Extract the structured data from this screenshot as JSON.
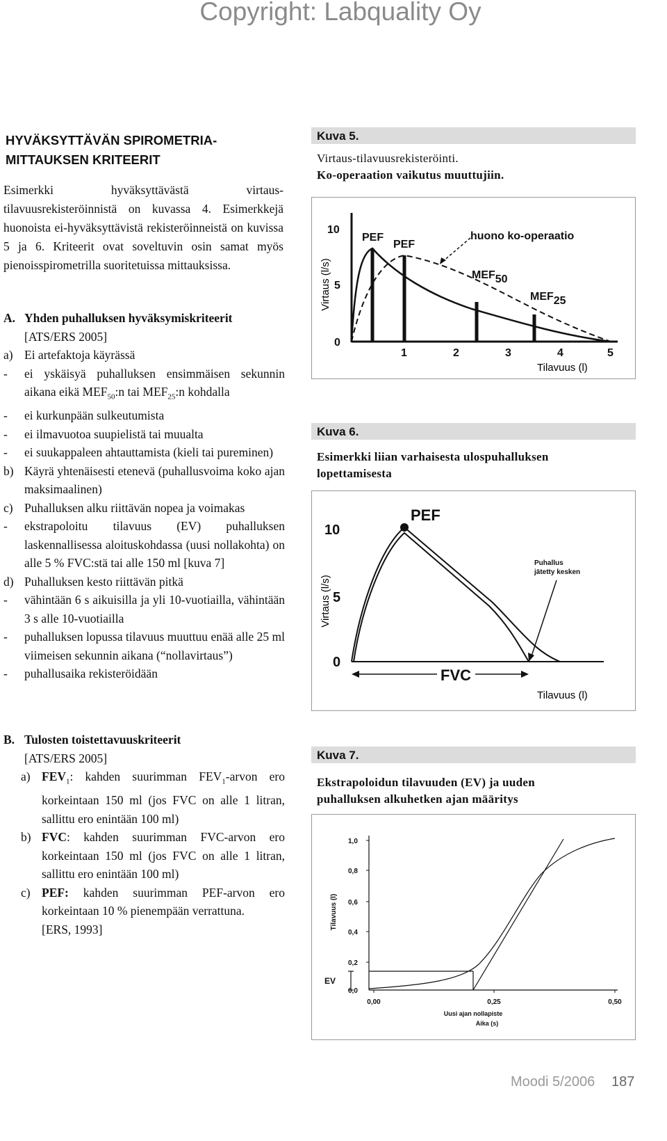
{
  "copyright": "Copyright: Labquality Oy",
  "heading": [
    "HYVÄKSYTTÄVÄN SPIROMETRIA-",
    "MITTAUKSEN KRITEERIT"
  ],
  "intro": "Esimerkki hyväksyttävästä virtaus-tilavuusrekisteröinnistä on kuvassa 4. Esimerkkejä huonoista ei-hyväksyttävistä rekisteröinneistä on kuvissa 5 ja 6. Kriteerit ovat soveltuvin osin samat myös pienoisspirometrilla suoritetuissa mittauksissa.",
  "section_a": {
    "label": "A.",
    "title": "Yhden puhalluksen hyväksymiskriteerit",
    "reference": "[ATS/ERS 2005]",
    "items": [
      {
        "marker": "a)",
        "text": [
          "Ei artefaktoja käyrässä"
        ]
      },
      {
        "marker": "-",
        "text": [
          "ei yskäisyä puhalluksen ensimmäisen sekunnin aikana eikä MEF",
          {
            "sub": "50"
          },
          ":n tai MEF",
          {
            "sub": "25"
          },
          ":n kohdalla"
        ]
      },
      {
        "marker": "-",
        "text": [
          "ei kurkunpään sulkeutumista"
        ]
      },
      {
        "marker": "-",
        "text": [
          "ei ilmavuotoa suupielistä tai muualta"
        ]
      },
      {
        "marker": "-",
        "text": [
          "ei suukappaleen ahtauttamista (kieli tai pureminen)"
        ]
      },
      {
        "marker": "b)",
        "text": [
          "Käyrä yhtenäisesti etenevä (puhallusvoima koko ajan maksimaalinen)"
        ]
      },
      {
        "marker": "c)",
        "text": [
          "Puhalluksen alku riittävän nopea ja voimakas"
        ]
      },
      {
        "marker": "-",
        "text": [
          "ekstrapoloitu tilavuus (EV) puhalluksen laskennallisessa aloituskohdassa (uusi nollakohta) on alle 5 % FVC:stä tai alle 150 ml [kuva 7]"
        ]
      },
      {
        "marker": "d)",
        "text": [
          "Puhalluksen kesto riittävän pitkä"
        ]
      },
      {
        "marker": "-",
        "text": [
          "vähintään 6 s aikuisilla ja yli 10-vuotiailla, vähintään 3 s alle 10-vuotiailla"
        ]
      },
      {
        "marker": "-",
        "text": [
          "puhalluksen lopussa tilavuus muuttuu enää alle 25 ml viimeisen sekunnin aikana (“nollavirtaus”)"
        ]
      },
      {
        "marker": "-",
        "text": [
          "puhallusaika rekisteröidään"
        ]
      }
    ]
  },
  "section_b": {
    "label": "B.",
    "title": "Tulosten toistettavuuskriteerit",
    "reference": "[ATS/ERS 2005]",
    "items": [
      {
        "marker": "a)",
        "text": [
          {
            "bold": "FEV"
          },
          {
            "sub": "1"
          },
          ": kahden suurimman FEV",
          {
            "sub": "1"
          },
          "-arvon ero korkeintaan 150 ml (jos FVC on alle 1 litran, sallittu ero enintään 100 ml)"
        ]
      },
      {
        "marker": "b)",
        "text": [
          {
            "bold": "FVC"
          },
          ": kahden suurimman FVC-arvon ero korkeintaan 150 ml (jos FVC on alle 1 litran, sallittu ero enintään 100 ml)"
        ]
      },
      {
        "marker": "c)",
        "text": [
          {
            "bold": "PEF:"
          },
          " kahden suurimman PEF-arvon ero korkeintaan 10 % pienempään verrattuna."
        ]
      }
    ],
    "closing_reference": "[ERS, 1993]"
  },
  "figures": [
    {
      "caption": "Kuva 5.",
      "title": [
        "Virtaus-tilavuusrekisteröinti.",
        "Ko-operaation vaikutus muuttujiin."
      ],
      "y_label": "Virtaus (l/s)",
      "x_label": "Tilavuus (l)",
      "yticks": [
        10,
        5,
        0
      ],
      "xticks": [
        1,
        2,
        3,
        4,
        5
      ],
      "annotations": [
        {
          "text": "PEF"
        },
        {
          "text": "PEF"
        },
        {
          "text": "huono ko-operaatio"
        },
        {
          "text": "MEF",
          "sub": "50"
        },
        {
          "text": "MEF",
          "sub": "25"
        }
      ]
    },
    {
      "caption": "Kuva 6.",
      "title": [
        "Esimerkki liian varhaisesta ulospuhalluksen",
        "lopettamisesta"
      ],
      "y_label": "Virtaus (l/s)",
      "x_label": "Tilavuus (l)",
      "yticks": [
        10,
        5,
        0
      ],
      "annotations": [
        {
          "text": "PEF"
        },
        {
          "text": "Puhallus"
        },
        {
          "text": "jätetty kesken"
        },
        {
          "text": "FVC"
        }
      ]
    },
    {
      "caption": "Kuva 7.",
      "title": [
        "Ekstrapoloidun tilavuuden (EV) ja uuden",
        "puhalluksen alkuhetken ajan määritys"
      ],
      "y_label": "Tilavuus (l)",
      "x_label": "Aika (s)",
      "yticks": [
        "1,0",
        "0,8",
        "0,6",
        "0,4",
        "0,2",
        "0,0"
      ],
      "xticks": [
        "0,00",
        "0,25",
        "0,50"
      ],
      "annotations": [
        {
          "text": "EV"
        },
        {
          "text": "Uusi ajan nollapiste"
        }
      ]
    }
  ],
  "footer": {
    "journal": "Moodi 5/2006",
    "page": 187
  }
}
